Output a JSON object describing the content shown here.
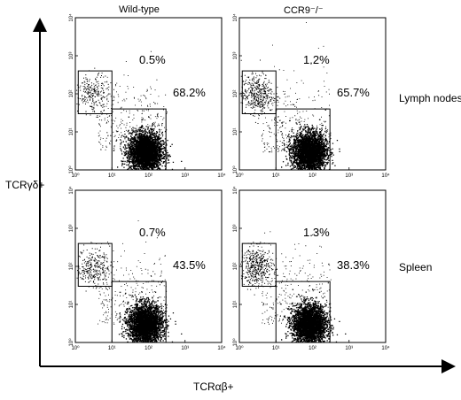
{
  "chart_data": {
    "type": "scatter",
    "plot_kind": "flow cytometry dot plot grid",
    "xlabel": "TCRαβ+",
    "ylabel": "TCRγδ+",
    "x_scale": "log",
    "y_scale": "log",
    "xlim": [
      1,
      10000
    ],
    "ylim": [
      1,
      10000
    ],
    "x_ticks": [
      "10⁰",
      "10¹",
      "10²",
      "10³",
      "10⁴"
    ],
    "y_ticks": [
      "10⁰",
      "10¹",
      "10²",
      "10³",
      "10⁴"
    ],
    "columns": [
      "Wild-type",
      "CCR9⁻/⁻"
    ],
    "rows": [
      "Lymph nodes",
      "Spleen"
    ],
    "gates": {
      "gamma_delta": {
        "x": [
          1.2,
          10
        ],
        "y": [
          30,
          400
        ]
      },
      "alpha_beta": {
        "x": [
          10,
          300
        ],
        "y": [
          1,
          40
        ]
      }
    },
    "panels": [
      {
        "column": "Wild-type",
        "row": "Lymph nodes",
        "gamma_delta_pct": "0.5%",
        "alpha_beta_pct": "68.2%"
      },
      {
        "column": "CCR9⁻/⁻",
        "row": "Lymph nodes",
        "gamma_delta_pct": "1.2%",
        "alpha_beta_pct": "65.7%"
      },
      {
        "column": "Wild-type",
        "row": "Spleen",
        "gamma_delta_pct": "0.7%",
        "alpha_beta_pct": "43.5%"
      },
      {
        "column": "CCR9⁻/⁻",
        "row": "Spleen",
        "gamma_delta_pct": "1.3%",
        "alpha_beta_pct": "38.3%"
      }
    ],
    "populations": {
      "alpha_beta_cluster_center": {
        "x": 80,
        "y": 3
      },
      "gamma_delta_cluster_center": {
        "x": 3,
        "y": 100
      }
    },
    "grid": false,
    "legend": "none"
  }
}
